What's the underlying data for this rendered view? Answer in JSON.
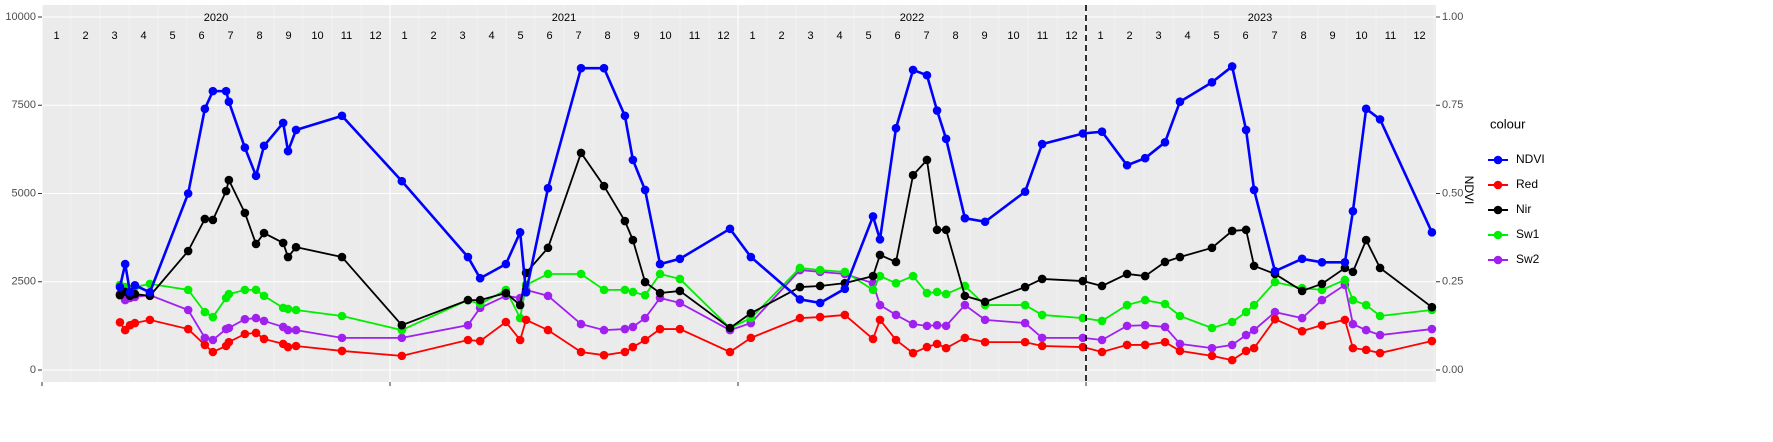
{
  "chart_data": {
    "type": "line",
    "y2label": "NDVI",
    "legend_title": "colour",
    "legend": "right",
    "grid": true,
    "years": [
      "2020",
      "2021",
      "2022",
      "2023"
    ],
    "months": [
      "1",
      "2",
      "3",
      "4",
      "5",
      "6",
      "7",
      "8",
      "9",
      "10",
      "11",
      "12"
    ],
    "xlim": [
      2020,
      2024
    ],
    "xticks": [
      2020,
      2021,
      2022,
      2023
    ],
    "vline": 2023,
    "ylim": [
      0,
      10000
    ],
    "yticks": [
      0,
      2500,
      5000,
      7500,
      10000
    ],
    "y2lim": [
      0,
      1
    ],
    "y2ticks": [
      {
        "value": 0,
        "label": "0.00"
      },
      {
        "value": 0.25,
        "label": "0.25"
      },
      {
        "value": 0.5,
        "label": "0.50"
      },
      {
        "value": 0.75,
        "label": "0.75"
      },
      {
        "value": 1,
        "label": "1.00"
      }
    ],
    "x": [
      2020.224,
      2020.239,
      2020.253,
      2020.267,
      2020.31,
      2020.42,
      2020.468,
      2020.491,
      2020.529,
      2020.537,
      2020.583,
      2020.615,
      2020.638,
      2020.693,
      2020.707,
      2020.73,
      2020.862,
      2021.034,
      2021.224,
      2021.259,
      2021.333,
      2021.374,
      2021.391,
      2021.454,
      2021.549,
      2021.615,
      2021.675,
      2021.698,
      2021.733,
      2021.776,
      2021.833,
      2021.977,
      2022.037,
      2022.178,
      2022.236,
      2022.307,
      2022.388,
      2022.408,
      2022.454,
      2022.503,
      2022.543,
      2022.572,
      2022.598,
      2022.652,
      2022.71,
      2022.825,
      2022.874,
      2022.991,
      2023.046,
      2023.118,
      2023.17,
      2023.227,
      2023.27,
      2023.362,
      2023.42,
      2023.46,
      2023.483,
      2023.543,
      2023.621,
      2023.678,
      2023.744,
      2023.767,
      2023.805,
      2023.845,
      2023.994
    ],
    "series": [
      {
        "name": "NDVI",
        "color": "#0000ff",
        "axis": "y2",
        "values": [
          0.235,
          0.3,
          0.22,
          0.24,
          0.22,
          0.5,
          0.74,
          0.79,
          0.79,
          0.76,
          0.63,
          0.55,
          0.635,
          0.7,
          0.62,
          0.68,
          0.72,
          0.535,
          0.32,
          0.26,
          0.3,
          0.39,
          0.22,
          0.515,
          0.855,
          0.855,
          0.72,
          0.595,
          0.51,
          0.3,
          0.315,
          0.4,
          0.32,
          0.2,
          0.19,
          0.23,
          0.435,
          0.37,
          0.685,
          0.85,
          0.835,
          0.735,
          0.655,
          0.43,
          0.42,
          0.505,
          0.64,
          0.67,
          0.675,
          0.58,
          0.6,
          0.645,
          0.76,
          0.815,
          0.86,
          0.68,
          0.51,
          0.28,
          0.315,
          0.305,
          0.305,
          0.45,
          0.74,
          0.71,
          0.39
        ]
      },
      {
        "name": "Red",
        "color": "#ff0000",
        "values": [
          1350,
          1130,
          1270,
          1330,
          1420,
          1160,
          710,
          510,
          680,
          790,
          1020,
          1050,
          880,
          740,
          650,
          680,
          540,
          400,
          850,
          820,
          1360,
          850,
          1420,
          1130,
          510,
          420,
          510,
          650,
          850,
          1160,
          1160,
          510,
          910,
          1470,
          1500,
          1560,
          880,
          1420,
          850,
          480,
          650,
          740,
          620,
          910,
          790,
          790,
          680,
          650,
          510,
          710,
          710,
          790,
          540,
          400,
          280,
          540,
          620,
          1440,
          1100,
          1270,
          1420,
          620,
          570,
          480,
          820
        ]
      },
      {
        "name": "Nir",
        "color": "#000000",
        "values": [
          2120,
          2210,
          2100,
          2150,
          2100,
          3370,
          4280,
          4250,
          5070,
          5380,
          4450,
          3570,
          3880,
          3600,
          3200,
          3480,
          3200,
          1270,
          1980,
          1980,
          2180,
          1840,
          2750,
          3460,
          6150,
          5210,
          4220,
          3680,
          2490,
          2180,
          2240,
          1190,
          1610,
          2350,
          2380,
          2460,
          2660,
          3260,
          3060,
          5520,
          5950,
          3970,
          3970,
          2100,
          1930,
          2350,
          2580,
          2520,
          2380,
          2720,
          2660,
          3060,
          3200,
          3460,
          3940,
          3970,
          2950,
          2720,
          2240,
          2440,
          2890,
          2780,
          3680,
          2890,
          1780
        ]
      },
      {
        "name": "Sw1",
        "color": "#00ee00",
        "values": [
          2410,
          2350,
          2290,
          2350,
          2440,
          2270,
          1640,
          1500,
          2040,
          2150,
          2270,
          2270,
          2100,
          1760,
          1730,
          1700,
          1530,
          1130,
          1980,
          1870,
          2270,
          1470,
          2410,
          2720,
          2720,
          2270,
          2270,
          2210,
          2120,
          2720,
          2580,
          1190,
          1470,
          2890,
          2830,
          2780,
          2270,
          2660,
          2460,
          2660,
          2180,
          2210,
          2150,
          2380,
          1840,
          1840,
          1560,
          1470,
          1390,
          1840,
          1980,
          1870,
          1530,
          1190,
          1360,
          1640,
          1840,
          2490,
          2320,
          2270,
          2550,
          1980,
          1840,
          1530,
          1700
        ]
      },
      {
        "name": "Sw2",
        "color": "#a020f0",
        "values": [
          2150,
          1980,
          2040,
          2070,
          2120,
          1700,
          910,
          850,
          1160,
          1190,
          1440,
          1470,
          1390,
          1220,
          1130,
          1130,
          910,
          910,
          1270,
          1760,
          2100,
          2040,
          2270,
          2100,
          1300,
          1130,
          1160,
          1220,
          1470,
          2040,
          1900,
          1130,
          1330,
          2830,
          2780,
          2720,
          2460,
          1840,
          1560,
          1300,
          1250,
          1270,
          1250,
          1840,
          1420,
          1330,
          910,
          910,
          850,
          1250,
          1270,
          1220,
          740,
          620,
          710,
          990,
          1130,
          1640,
          1470,
          1980,
          2410,
          1300,
          1130,
          990,
          1160
        ]
      }
    ]
  }
}
